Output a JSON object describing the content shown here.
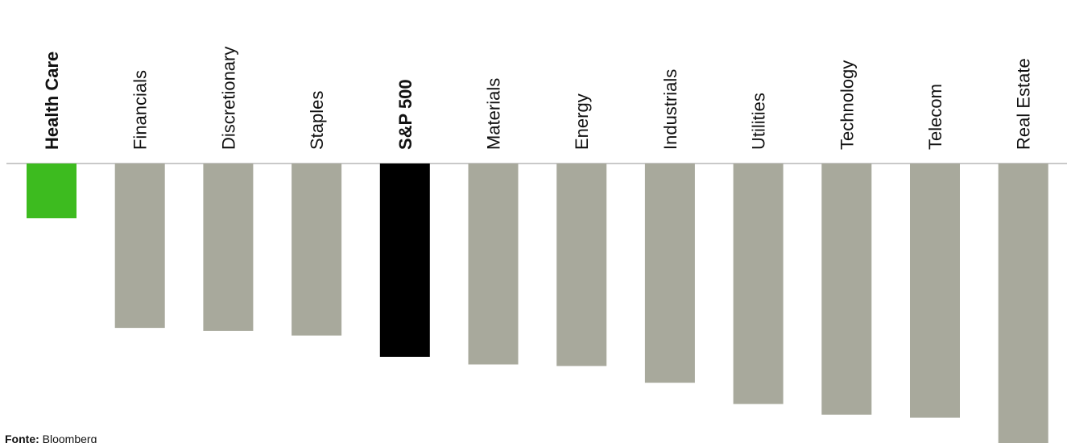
{
  "chart_data": {
    "type": "bar",
    "categories": [
      "Health Care",
      "Financials",
      "Discretionary",
      "Staples",
      "S&P 500",
      "Materials",
      "Energy",
      "Industrials",
      "Utilities",
      "Technology",
      "Telecom",
      "Real Estate"
    ],
    "values": [
      -3.6,
      -10.8,
      -11.0,
      -11.3,
      -12.7,
      -13.2,
      -13.3,
      -14.4,
      -15.8,
      -16.5,
      -16.7,
      -18.8
    ],
    "highlight": {
      "Health Care": "#3dbb1f",
      "S&P 500": "#000000"
    },
    "bar_color": "#a8a99c",
    "baseline_color": "#c9c9c9",
    "orientation": "vertical-labels-top"
  },
  "source": {
    "label": "Fonte:",
    "text": "Bloomberg"
  }
}
